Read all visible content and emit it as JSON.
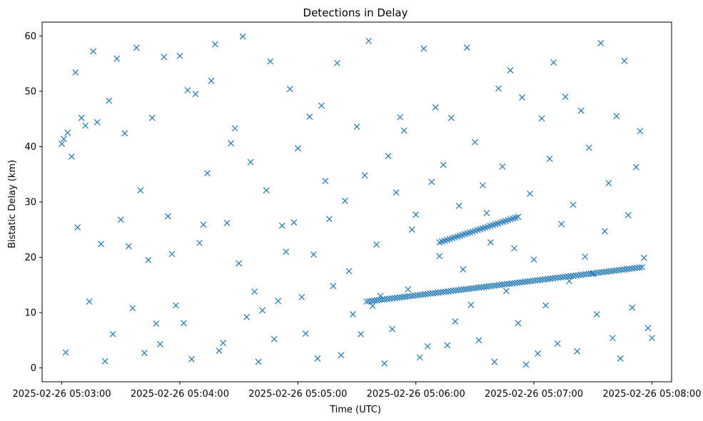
{
  "chart_data": {
    "type": "scatter",
    "title": "Detections in Delay",
    "xlabel": "Time (UTC)",
    "ylabel": "Bistatic Delay (km)",
    "marker": "x",
    "color": "#1f77b4",
    "grid": false,
    "legend": "none",
    "xlim": [
      "2025-02-26 05:02:50",
      "2025-02-26 05:08:10"
    ],
    "ylim": [
      -2.5,
      62.5
    ],
    "x_ticks": [
      "2025-02-26 05:03:00",
      "2025-02-26 05:04:00",
      "2025-02-26 05:05:00",
      "2025-02-26 05:06:00",
      "2025-02-26 05:07:00",
      "2025-02-26 05:08:00"
    ],
    "y_ticks": [
      0,
      10,
      20,
      30,
      40,
      50,
      60
    ],
    "x_tick_labels": [
      "2025-02-26 05:03:00",
      "2025-02-26 05:04:00",
      "2025-02-26 05:05:00",
      "2025-02-26 05:06:00",
      "2025-02-26 05:07:00",
      "2025-02-26 05:08:00"
    ],
    "y_tick_labels": [
      "0",
      "10",
      "20",
      "30",
      "40",
      "50",
      "60"
    ],
    "tracks": [
      {
        "x_start": "2025-02-26 05:05:35",
        "x_end": "2025-02-26 05:07:55",
        "y_start": 12.0,
        "y_end": 18.2
      },
      {
        "x_start": "2025-02-26 05:06:12",
        "x_end": "2025-02-26 05:06:52",
        "y_start": 22.7,
        "y_end": 27.3
      }
    ],
    "series": [
      {
        "x": [
          "2025-02-26 05:03:00",
          "2025-02-26 05:03:01",
          "2025-02-26 05:03:02",
          "2025-02-26 05:03:03",
          "2025-02-26 05:03:05",
          "2025-02-26 05:03:07",
          "2025-02-26 05:03:08",
          "2025-02-26 05:03:10",
          "2025-02-26 05:03:12",
          "2025-02-26 05:03:14",
          "2025-02-26 05:03:16",
          "2025-02-26 05:03:18",
          "2025-02-26 05:03:20",
          "2025-02-26 05:03:22",
          "2025-02-26 05:03:24",
          "2025-02-26 05:03:26",
          "2025-02-26 05:03:28",
          "2025-02-26 05:03:30",
          "2025-02-26 05:03:32",
          "2025-02-26 05:03:34",
          "2025-02-26 05:03:36",
          "2025-02-26 05:03:38",
          "2025-02-26 05:03:40",
          "2025-02-26 05:03:42",
          "2025-02-26 05:03:44",
          "2025-02-26 05:03:46",
          "2025-02-26 05:03:48",
          "2025-02-26 05:03:50",
          "2025-02-26 05:03:52",
          "2025-02-26 05:03:54",
          "2025-02-26 05:03:56",
          "2025-02-26 05:03:58",
          "2025-02-26 05:04:00",
          "2025-02-26 05:04:02",
          "2025-02-26 05:04:04",
          "2025-02-26 05:04:06",
          "2025-02-26 05:04:08",
          "2025-02-26 05:04:10",
          "2025-02-26 05:04:12",
          "2025-02-26 05:04:14",
          "2025-02-26 05:04:16",
          "2025-02-26 05:04:18",
          "2025-02-26 05:04:20",
          "2025-02-26 05:04:22",
          "2025-02-26 05:04:24",
          "2025-02-26 05:04:26",
          "2025-02-26 05:04:28",
          "2025-02-26 05:04:30",
          "2025-02-26 05:04:32",
          "2025-02-26 05:04:34",
          "2025-02-26 05:04:36",
          "2025-02-26 05:04:38",
          "2025-02-26 05:04:40",
          "2025-02-26 05:04:42",
          "2025-02-26 05:04:44",
          "2025-02-26 05:04:46",
          "2025-02-26 05:04:48",
          "2025-02-26 05:04:50",
          "2025-02-26 05:04:52",
          "2025-02-26 05:04:54",
          "2025-02-26 05:04:56",
          "2025-02-26 05:04:58",
          "2025-02-26 05:05:00",
          "2025-02-26 05:05:02",
          "2025-02-26 05:05:04",
          "2025-02-26 05:05:06",
          "2025-02-26 05:05:08",
          "2025-02-26 05:05:10",
          "2025-02-26 05:05:12",
          "2025-02-26 05:05:14",
          "2025-02-26 05:05:16",
          "2025-02-26 05:05:18",
          "2025-02-26 05:05:20",
          "2025-02-26 05:05:22",
          "2025-02-26 05:05:24",
          "2025-02-26 05:05:26",
          "2025-02-26 05:05:28",
          "2025-02-26 05:05:30",
          "2025-02-26 05:05:32",
          "2025-02-26 05:05:34",
          "2025-02-26 05:05:36",
          "2025-02-26 05:05:38",
          "2025-02-26 05:05:40",
          "2025-02-26 05:05:42",
          "2025-02-26 05:05:44",
          "2025-02-26 05:05:46",
          "2025-02-26 05:05:48",
          "2025-02-26 05:05:50",
          "2025-02-26 05:05:52",
          "2025-02-26 05:05:54",
          "2025-02-26 05:05:56",
          "2025-02-26 05:05:58",
          "2025-02-26 05:06:00",
          "2025-02-26 05:06:02",
          "2025-02-26 05:06:04",
          "2025-02-26 05:06:06",
          "2025-02-26 05:06:08",
          "2025-02-26 05:06:10",
          "2025-02-26 05:06:12",
          "2025-02-26 05:06:14",
          "2025-02-26 05:06:16",
          "2025-02-26 05:06:18",
          "2025-02-26 05:06:20",
          "2025-02-26 05:06:22",
          "2025-02-26 05:06:24",
          "2025-02-26 05:06:26",
          "2025-02-26 05:06:28",
          "2025-02-26 05:06:30",
          "2025-02-26 05:06:32",
          "2025-02-26 05:06:34",
          "2025-02-26 05:06:36",
          "2025-02-26 05:06:38",
          "2025-02-26 05:06:40",
          "2025-02-26 05:06:42",
          "2025-02-26 05:06:44",
          "2025-02-26 05:06:46",
          "2025-02-26 05:06:48",
          "2025-02-26 05:06:50",
          "2025-02-26 05:06:52",
          "2025-02-26 05:06:54",
          "2025-02-26 05:06:56",
          "2025-02-26 05:06:58",
          "2025-02-26 05:07:00",
          "2025-02-26 05:07:02",
          "2025-02-26 05:07:04",
          "2025-02-26 05:07:06",
          "2025-02-26 05:07:08",
          "2025-02-26 05:07:10",
          "2025-02-26 05:07:12",
          "2025-02-26 05:07:14",
          "2025-02-26 05:07:16",
          "2025-02-26 05:07:18",
          "2025-02-26 05:07:20",
          "2025-02-26 05:07:22",
          "2025-02-26 05:07:24",
          "2025-02-26 05:07:26",
          "2025-02-26 05:07:28",
          "2025-02-26 05:07:30",
          "2025-02-26 05:07:32",
          "2025-02-26 05:07:34",
          "2025-02-26 05:07:36",
          "2025-02-26 05:07:38",
          "2025-02-26 05:07:40",
          "2025-02-26 05:07:42",
          "2025-02-26 05:07:44",
          "2025-02-26 05:07:46",
          "2025-02-26 05:07:48",
          "2025-02-26 05:07:50",
          "2025-02-26 05:07:52",
          "2025-02-26 05:07:54",
          "2025-02-26 05:07:56",
          "2025-02-26 05:07:58",
          "2025-02-26 05:08:00"
        ],
        "y": [
          40.5,
          41.4,
          2.8,
          42.5,
          38.2,
          53.4,
          25.4,
          45.2,
          43.8,
          12.0,
          57.2,
          44.4,
          22.4,
          1.2,
          48.3,
          6.1,
          55.9,
          26.8,
          42.4,
          22.0,
          10.8,
          57.9,
          32.1,
          2.7,
          19.5,
          45.2,
          8.0,
          4.3,
          56.2,
          27.4,
          20.6,
          11.3,
          56.4,
          8.1,
          50.2,
          1.6,
          49.5,
          22.6,
          25.9,
          35.2,
          51.9,
          58.5,
          3.1,
          4.5,
          26.2,
          40.6,
          43.3,
          18.9,
          59.9,
          9.2,
          37.2,
          13.8,
          1.1,
          10.4,
          32.1,
          55.4,
          5.2,
          12.1,
          25.7,
          21.0,
          50.4,
          26.3,
          39.7,
          12.8,
          6.2,
          45.4,
          20.5,
          1.7,
          47.4,
          33.8,
          26.9,
          14.8,
          55.1,
          2.3,
          30.2,
          17.5,
          9.7,
          43.6,
          6.1,
          34.8,
          59.1,
          11.2,
          22.3,
          13.0,
          0.8,
          38.3,
          7.0,
          31.7,
          45.3,
          42.9,
          14.2,
          25.0,
          27.7,
          1.9,
          57.7,
          3.9,
          33.6,
          47.1,
          20.2,
          36.7,
          4.1,
          45.2,
          8.4,
          29.3,
          17.8,
          57.9,
          11.4,
          40.8,
          5.0,
          33.0,
          28.0,
          22.7,
          1.1,
          50.5,
          36.4,
          13.9,
          53.8,
          21.6,
          8.1,
          48.9,
          0.6,
          31.5,
          19.6,
          2.6,
          45.1,
          11.3,
          37.8,
          55.2,
          4.4,
          26.0,
          49.0,
          15.7,
          29.5,
          3.0,
          46.5,
          20.1,
          39.8,
          17.0,
          9.7,
          58.7,
          24.7,
          33.4,
          5.4,
          45.5,
          1.7,
          55.5,
          27.6,
          10.9,
          36.3,
          42.8,
          19.9,
          7.2,
          5.4
        ],
        "name": ""
      }
    ]
  }
}
